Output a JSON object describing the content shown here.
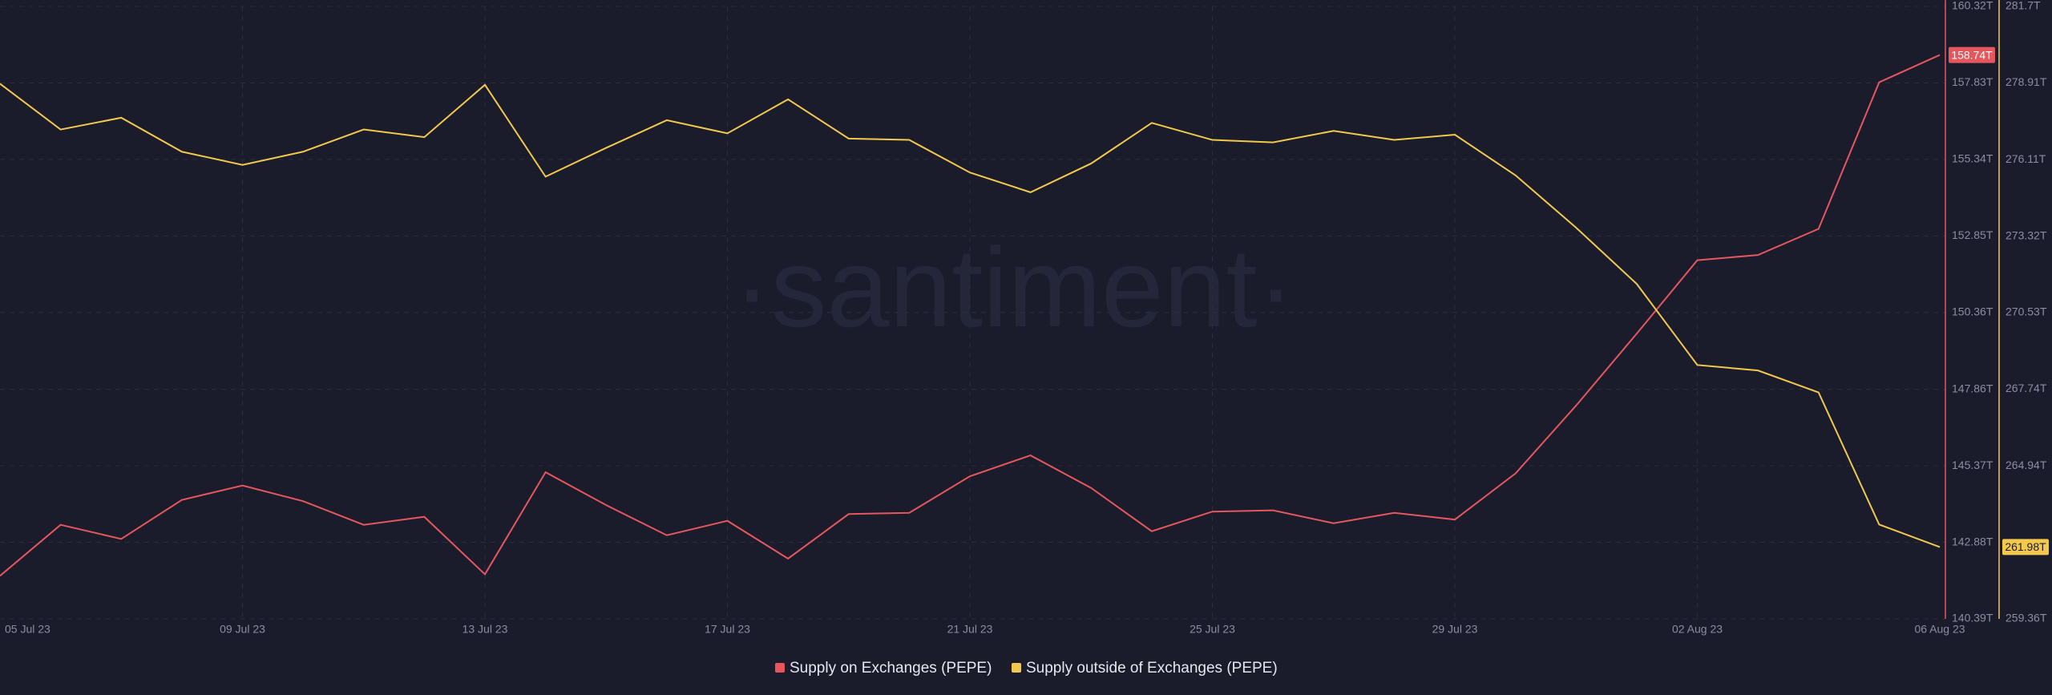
{
  "chart_data": {
    "type": "line",
    "watermark": "·santiment·",
    "categories": [
      "05 Jul 23",
      null,
      null,
      null,
      "09 Jul 23",
      null,
      null,
      null,
      "13 Jul 23",
      null,
      null,
      null,
      "17 Jul 23",
      null,
      null,
      null,
      "21 Jul 23",
      null,
      null,
      null,
      "25 Jul 23",
      null,
      null,
      null,
      "29 Jul 23",
      null,
      null,
      null,
      "02 Aug 23",
      null,
      null,
      null,
      "06 Aug 23"
    ],
    "series": [
      {
        "name": "Supply on Exchanges (PEPE)",
        "color": "#e5575c",
        "values": [
          141.79,
          143.45,
          142.99,
          144.26,
          144.73,
          144.22,
          143.45,
          143.71,
          141.84,
          145.16,
          144.09,
          143.11,
          143.58,
          142.35,
          143.8,
          143.84,
          145.03,
          145.71,
          144.65,
          143.24,
          143.88,
          143.92,
          143.5,
          143.84,
          143.62,
          145.12,
          147.33,
          149.67,
          152.06,
          152.23,
          153.08,
          157.85,
          158.74
        ],
        "value_labels": [
          null,
          null,
          null,
          null,
          null,
          null,
          null,
          null,
          null,
          null,
          null,
          null,
          null,
          null,
          null,
          null,
          null,
          null,
          null,
          null,
          null,
          null,
          null,
          null,
          null,
          null,
          null,
          null,
          null,
          null,
          null,
          null,
          "158.74T"
        ]
      },
      {
        "name": "Supply outside of Exchanges (PEPE)",
        "color": "#f2c94c",
        "axis": "y2",
        "values": [
          278.88,
          277.21,
          277.64,
          276.4,
          275.92,
          276.4,
          277.21,
          276.93,
          278.84,
          275.49,
          276.54,
          277.55,
          277.07,
          278.31,
          276.88,
          276.83,
          275.64,
          274.92,
          275.97,
          277.45,
          276.83,
          276.74,
          277.16,
          276.83,
          277.02,
          275.54,
          273.63,
          271.58,
          268.62,
          268.42,
          267.62,
          262.8,
          261.98
        ],
        "value_labels": [
          null,
          null,
          null,
          null,
          null,
          null,
          null,
          null,
          null,
          null,
          null,
          null,
          null,
          null,
          null,
          null,
          null,
          null,
          null,
          null,
          null,
          null,
          null,
          null,
          null,
          null,
          null,
          null,
          null,
          null,
          null,
          null,
          "261.98T"
        ]
      }
    ],
    "ylim": [
      140.39,
      160.32
    ],
    "yticks": [
      {
        "value": 160.32,
        "label": "160.32T"
      },
      {
        "value": 157.83,
        "label": "157.83T"
      },
      {
        "value": 155.34,
        "label": "155.34T"
      },
      {
        "value": 152.85,
        "label": "152.85T"
      },
      {
        "value": 150.36,
        "label": "150.36T"
      },
      {
        "value": 147.86,
        "label": "147.86T"
      },
      {
        "value": 145.37,
        "label": "145.37T"
      },
      {
        "value": 142.88,
        "label": "142.88T"
      },
      {
        "value": 140.39,
        "label": "140.39T"
      }
    ],
    "y2lim": [
      259.36,
      281.7
    ],
    "y2ticks": [
      {
        "value": 281.7,
        "label": "281.7T"
      },
      {
        "value": 278.91,
        "label": "278.91T"
      },
      {
        "value": 276.11,
        "label": "276.11T"
      },
      {
        "value": 273.32,
        "label": "273.32T"
      },
      {
        "value": 270.53,
        "label": "270.53T"
      },
      {
        "value": 267.74,
        "label": "267.74T"
      },
      {
        "value": 264.94,
        "label": "264.94T"
      },
      {
        "value": 259.36,
        "label": "259.36T"
      }
    ],
    "grid": true
  }
}
